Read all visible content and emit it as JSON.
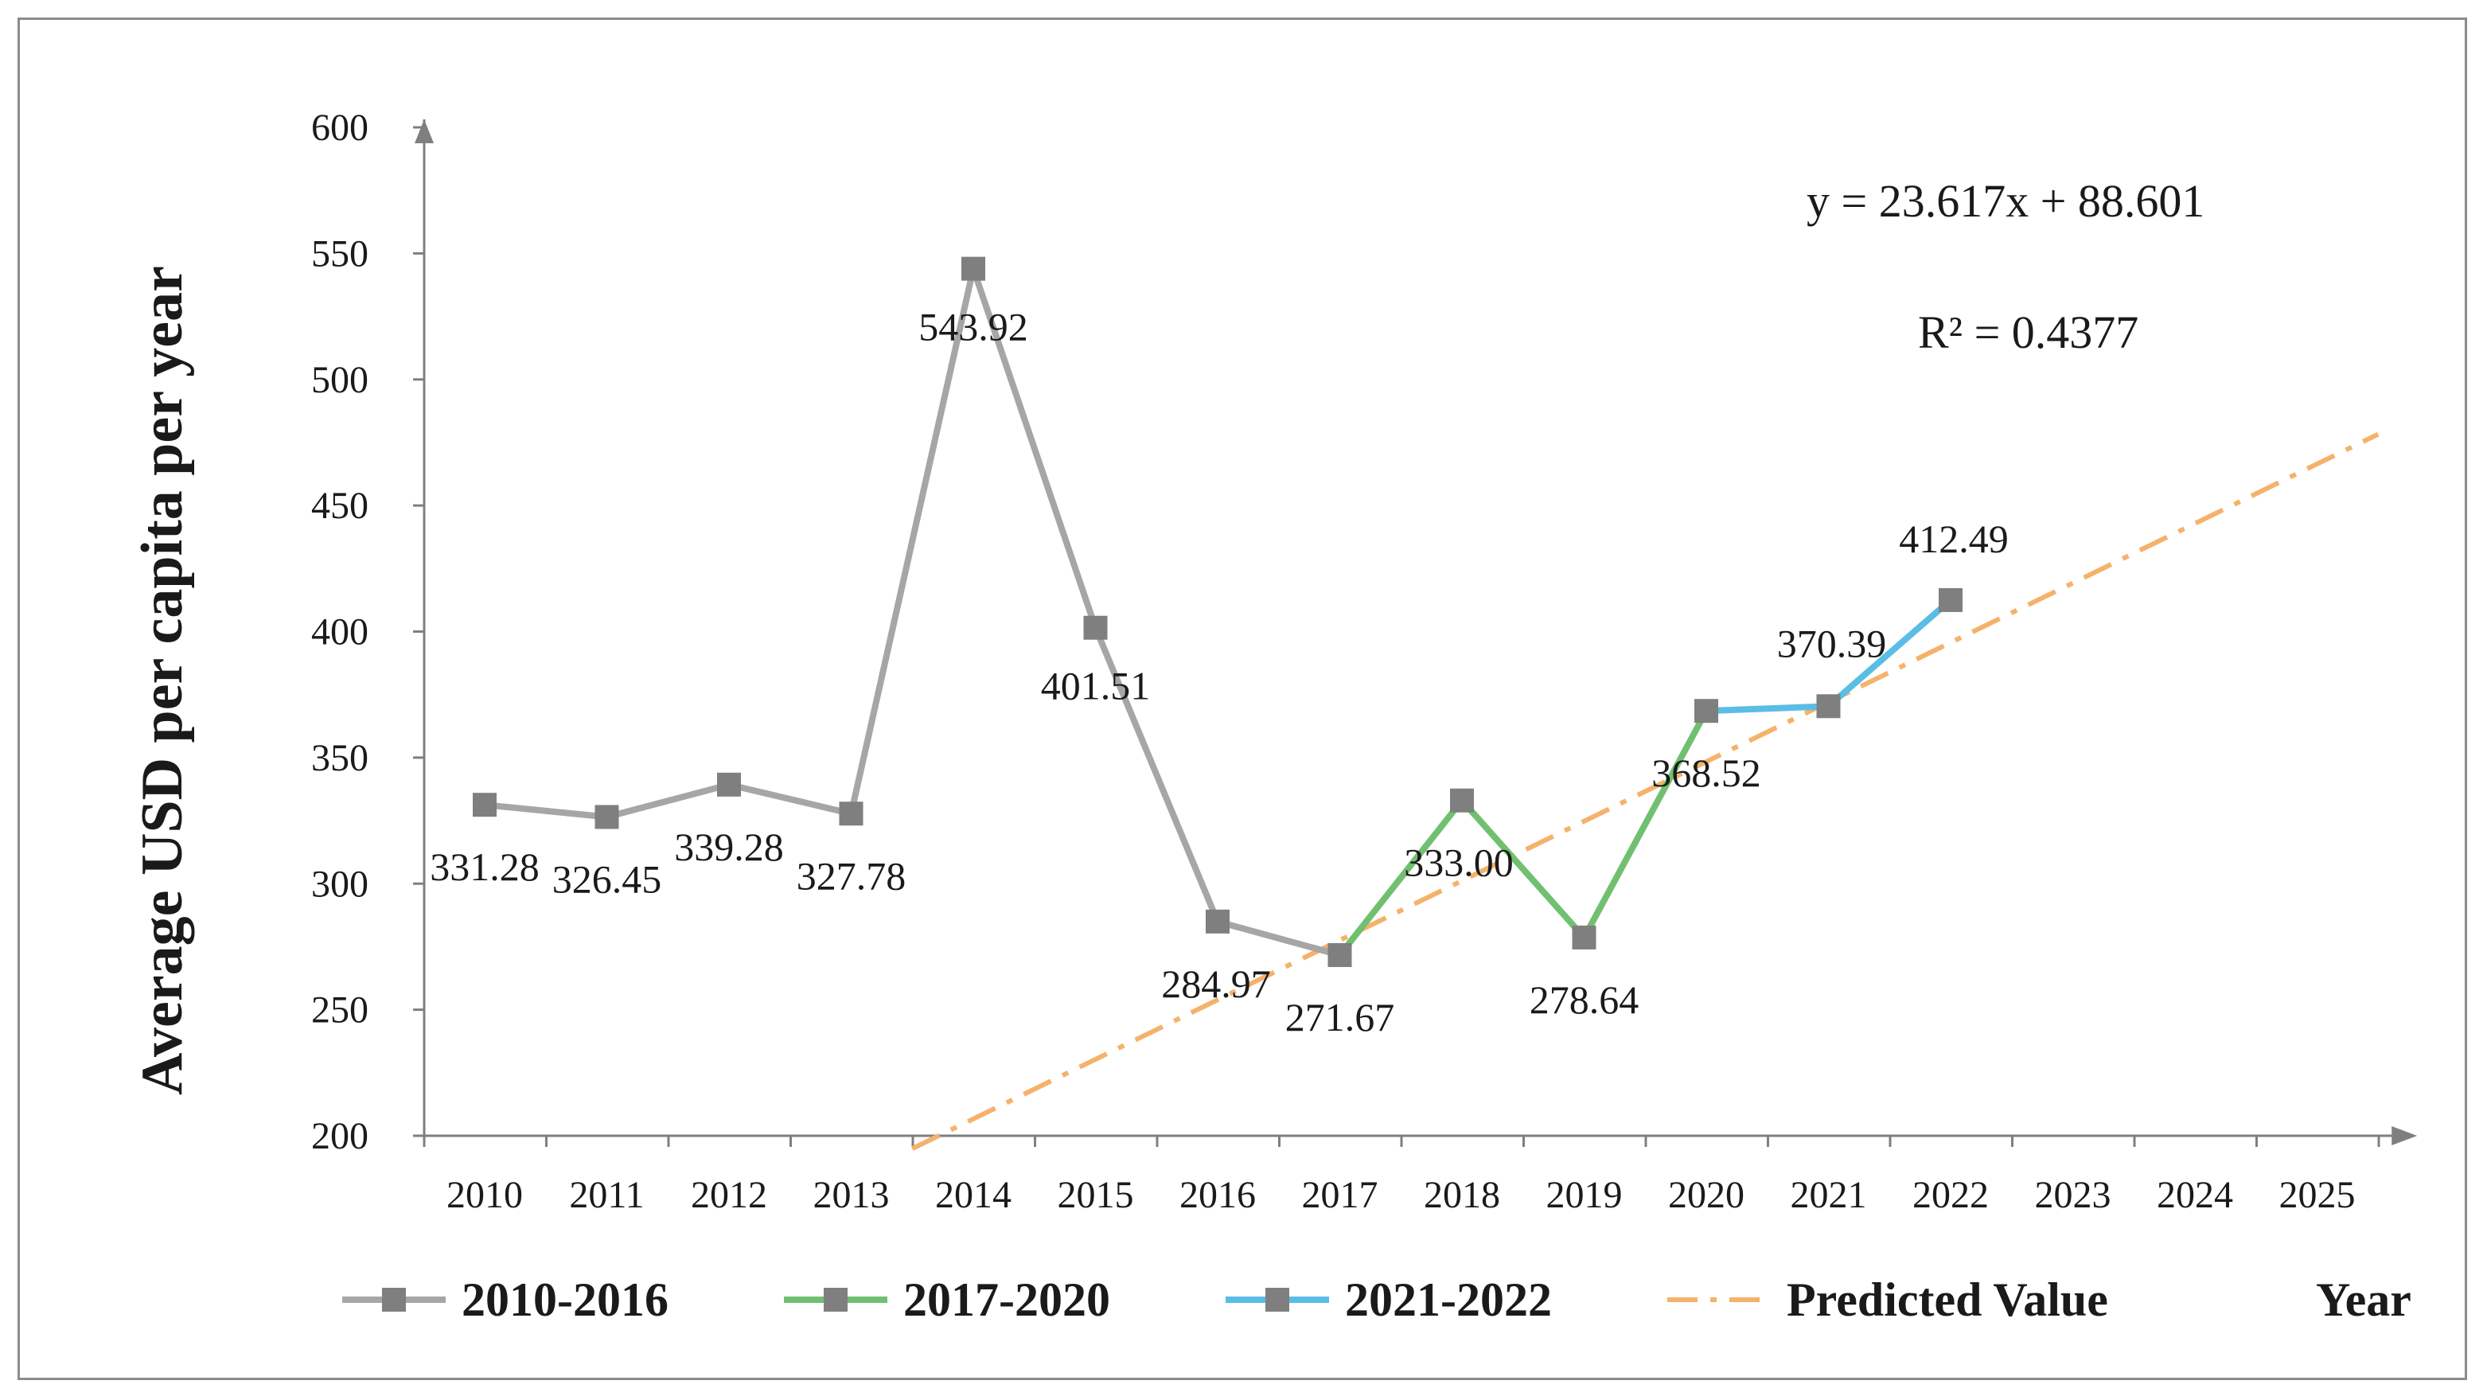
{
  "chart_data": {
    "type": "line",
    "title": "",
    "xlabel": "Year",
    "ylabel": "Average USD per capita per year",
    "ylim": [
      200,
      600
    ],
    "yticks": [
      200,
      250,
      300,
      350,
      400,
      450,
      500,
      550,
      600
    ],
    "categories": [
      "2010",
      "2011",
      "2012",
      "2013",
      "2014",
      "2015",
      "2016",
      "2017",
      "2018",
      "2019",
      "2020",
      "2021",
      "2022",
      "2023",
      "2024",
      "2025"
    ],
    "series": [
      {
        "name": "2010-2016",
        "color": "#a6a6a6",
        "x": [
          2010,
          2011,
          2012,
          2013,
          2014,
          2015,
          2016,
          2017
        ],
        "values": [
          331.28,
          326.45,
          339.28,
          327.78,
          543.92,
          401.51,
          284.97,
          271.67
        ]
      },
      {
        "name": "2017-2020",
        "color": "#70c070",
        "x": [
          2017,
          2018,
          2019,
          2020
        ],
        "values": [
          271.67,
          333.0,
          278.64,
          368.52
        ]
      },
      {
        "name": "2021-2022",
        "color": "#5bbde6",
        "x": [
          2020,
          2021,
          2022
        ],
        "values": [
          368.52,
          370.39,
          412.49
        ]
      }
    ],
    "data_labels": [
      {
        "year": 2010,
        "text": "331.28"
      },
      {
        "year": 2011,
        "text": "326.45"
      },
      {
        "year": 2012,
        "text": "339.28"
      },
      {
        "year": 2013,
        "text": "327.78"
      },
      {
        "year": 2014,
        "text": "543.92"
      },
      {
        "year": 2015,
        "text": "401.51"
      },
      {
        "year": 2016,
        "text": "284.97"
      },
      {
        "year": 2017,
        "text": "271.67"
      },
      {
        "year": 2018,
        "text": "333.00"
      },
      {
        "year": 2019,
        "text": "278.64"
      },
      {
        "year": 2020,
        "text": "368.52"
      },
      {
        "year": 2021,
        "text": "370.39"
      },
      {
        "year": 2022,
        "text": "412.49"
      }
    ],
    "trendline": {
      "name": "Predicted  Value",
      "color": "#f5b26b",
      "slope": 23.617,
      "intercept": 88.601,
      "x_start": 2013.5,
      "x_end": 2025.5,
      "equation": "y = 23.617x  + 88.601",
      "r_squared": "R² = 0.4377"
    },
    "marker_color": "#7f7f7f",
    "legend": {
      "items": [
        "2010-2016",
        "2017-2020",
        "2021-2022",
        "Predicted  Value"
      ],
      "position": "bottom",
      "x_axis_title": "Year"
    }
  }
}
